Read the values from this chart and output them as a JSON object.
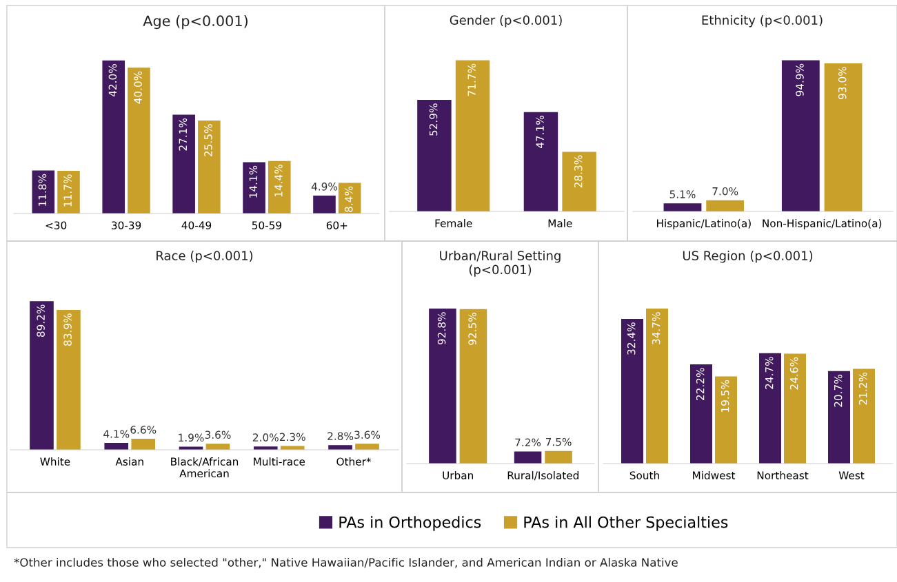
{
  "chart_data": [
    {
      "type": "bar",
      "title": "Age (p<0.001)",
      "categories": [
        "<30",
        "30-39",
        "40-49",
        "50-59",
        "60+"
      ],
      "legend": "bottom",
      "series": [
        {
          "name": "PAs in Orthopedics",
          "color": "#41195e",
          "values": [
            11.8,
            42.0,
            27.1,
            14.1,
            4.9
          ],
          "value_labels": [
            "11.8%",
            "42.0%",
            "27.1%",
            "14.1%",
            "4.9%"
          ]
        },
        {
          "name": "PAs in All Other Specialties",
          "color": "#c9a12a",
          "values": [
            11.7,
            40.0,
            25.5,
            14.4,
            8.4
          ],
          "value_labels": [
            "11.7%",
            "40.0%",
            "25.5%",
            "14.4%",
            "8.4%"
          ]
        }
      ]
    },
    {
      "type": "bar",
      "title": "Gender (p<0.001)",
      "categories": [
        "Female",
        "Male"
      ],
      "series": [
        {
          "color": "#41195e",
          "values": [
            52.9,
            47.1
          ],
          "value_labels": [
            "52.9%",
            "47.1%"
          ]
        },
        {
          "color": "#c9a12a",
          "values": [
            71.7,
            28.3
          ],
          "value_labels": [
            "71.7%",
            "28.3%"
          ]
        }
      ]
    },
    {
      "type": "bar",
      "title": "Ethnicity (p<0.001)",
      "categories": [
        "Hispanic/Latino(a)",
        "Non-Hispanic/Latino(a)"
      ],
      "series": [
        {
          "color": "#41195e",
          "values": [
            5.1,
            94.9
          ],
          "value_labels": [
            "5.1%",
            "94.9%"
          ]
        },
        {
          "color": "#c9a12a",
          "values": [
            7.0,
            93.0
          ],
          "value_labels": [
            "7.0%",
            "93.0%"
          ]
        }
      ]
    },
    {
      "type": "bar",
      "title": "Race (p<0.001)",
      "categories": [
        "White",
        "Asian",
        "Black/African\nAmerican",
        "Multi-race",
        "Other*"
      ],
      "annotations": [
        "*Other includes those who selected \"other,\" Native Hawaiian/Pacific Islander, and American Indian or Alaska Native"
      ],
      "series": [
        {
          "color": "#41195e",
          "values": [
            89.2,
            4.1,
            1.9,
            2.0,
            2.8
          ],
          "value_labels": [
            "89.2%",
            "4.1%",
            "1.9%",
            "2.0%",
            "2.8%"
          ]
        },
        {
          "color": "#c9a12a",
          "values": [
            83.9,
            6.6,
            3.6,
            2.3,
            3.6
          ],
          "value_labels": [
            "83.9%",
            "6.6%",
            "3.6%",
            "2.3%",
            "3.6%"
          ]
        }
      ]
    },
    {
      "type": "bar",
      "title": "Urban/Rural Setting\n(p<0.001)",
      "categories": [
        "Urban",
        "Rural/Isolated"
      ],
      "series": [
        {
          "color": "#41195e",
          "values": [
            92.8,
            7.2
          ],
          "value_labels": [
            "92.8%",
            "7.2%"
          ]
        },
        {
          "color": "#c9a12a",
          "values": [
            92.5,
            7.5
          ],
          "value_labels": [
            "92.5%",
            "7.5%"
          ]
        }
      ]
    },
    {
      "type": "bar",
      "title": "US Region (p<0.001)",
      "categories": [
        "South",
        "Midwest",
        "Northeast",
        "West"
      ],
      "series": [
        {
          "color": "#41195e",
          "values": [
            32.4,
            22.2,
            24.7,
            20.7
          ],
          "value_labels": [
            "32.4%",
            "22.2%",
            "24.7%",
            "20.7%"
          ]
        },
        {
          "color": "#c9a12a",
          "values": [
            34.7,
            19.5,
            24.6,
            21.2
          ],
          "value_labels": [
            "34.7%",
            "19.5%",
            "24.6%",
            "21.2%"
          ]
        }
      ]
    }
  ]
}
